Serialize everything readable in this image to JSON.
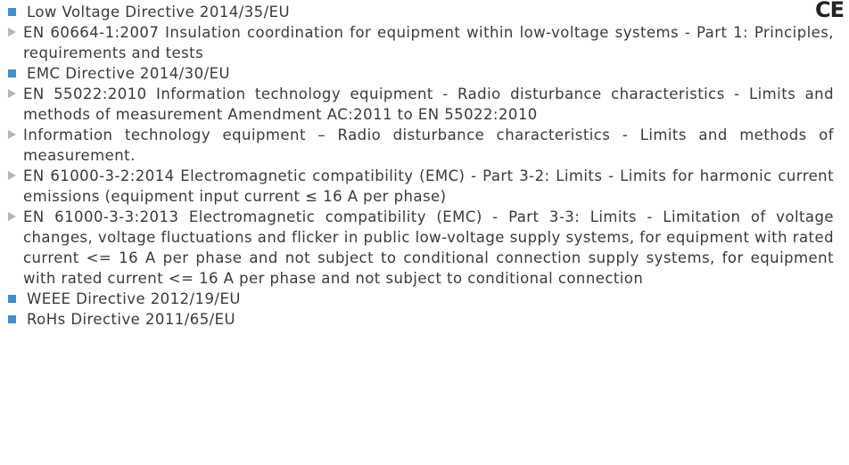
{
  "mark": "CE",
  "items": [
    {
      "title": "Low Voltage Directive 2014/35/EU",
      "children": [
        "EN 60664-1:2007 Insulation coordination for equipment within low-voltage systems - Part 1: Principles, requirements and tests"
      ]
    },
    {
      "title": "EMC Directive 2014/30/EU",
      "children": [
        "EN 55022:2010 Information technology equipment - Radio disturbance characteristics - Limits and methods of measurement Amendment AC:2011 to EN 55022:2010",
        "Information technology equipment – Radio disturbance characteristics - Limits and methods of measurement.",
        "EN 61000-3-2:2014 Electromagnetic compatibility (EMC) - Part 3-2: Limits - Limits for harmonic current emissions (equipment input current ≤ 16 A per phase)",
        "EN 61000-3-3:2013 Electromagnetic compatibility (EMC) - Part 3-3: Limits - Limitation of voltage changes, voltage fluctuations and flicker in public low-voltage supply systems, for equipment with rated current <= 16 A per phase and not subject to conditional connection supply systems, for equipment with rated current <= 16 A per phase and not subject to conditional connection"
      ]
    },
    {
      "title": "WEEE Directive 2012/19/EU",
      "children": []
    },
    {
      "title": "RoHs Directive 2011/65/EU",
      "children": []
    }
  ]
}
